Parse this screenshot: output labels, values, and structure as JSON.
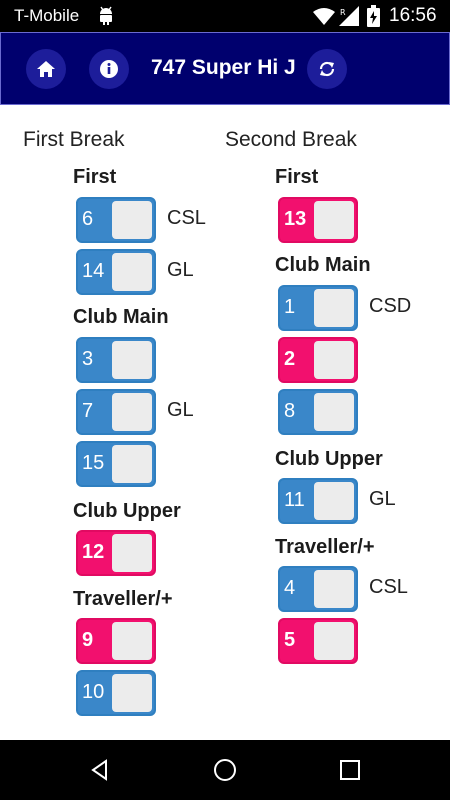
{
  "status": {
    "carrier": "T-Mobile",
    "time": "16:56"
  },
  "header": {
    "title": "747 Super Hi J",
    "home_icon": "home-icon",
    "info_icon": "info-icon",
    "refresh_icon": "refresh-icon",
    "background": "#00006e"
  },
  "colors": {
    "blue": "#3a87c9",
    "pink": "#f2106e"
  },
  "first_break": {
    "heading": "First Break",
    "groups": [
      {
        "label": "First",
        "seats": [
          {
            "num": "6",
            "tag": "CSL",
            "color": "blue"
          },
          {
            "num": "14",
            "tag": "GL",
            "color": "blue"
          }
        ]
      },
      {
        "label": "Club Main",
        "seats": [
          {
            "num": "3",
            "tag": "",
            "color": "blue"
          },
          {
            "num": "7",
            "tag": "GL",
            "color": "blue"
          },
          {
            "num": "15",
            "tag": "",
            "color": "blue"
          }
        ]
      },
      {
        "label": "Club Upper",
        "seats": [
          {
            "num": "12",
            "tag": "",
            "color": "pink"
          }
        ]
      },
      {
        "label": "Traveller/+",
        "seats": [
          {
            "num": "9",
            "tag": "",
            "color": "pink"
          },
          {
            "num": "10",
            "tag": "",
            "color": "blue"
          }
        ]
      }
    ]
  },
  "second_break": {
    "heading": "Second Break",
    "groups": [
      {
        "label": "First",
        "seats": [
          {
            "num": "13",
            "tag": "",
            "color": "pink"
          }
        ]
      },
      {
        "label": "Club Main",
        "seats": [
          {
            "num": "1",
            "tag": "CSD",
            "color": "blue"
          },
          {
            "num": "2",
            "tag": "",
            "color": "pink"
          },
          {
            "num": "8",
            "tag": "",
            "color": "blue"
          }
        ]
      },
      {
        "label": "Club Upper",
        "seats": [
          {
            "num": "11",
            "tag": "GL",
            "color": "blue"
          }
        ]
      },
      {
        "label": "Traveller/+",
        "seats": [
          {
            "num": "4",
            "tag": "CSL",
            "color": "blue"
          },
          {
            "num": "5",
            "tag": "",
            "color": "pink"
          }
        ]
      }
    ]
  },
  "nav": {
    "back_icon": "back-icon",
    "home_icon": "home-circle-icon",
    "recents_icon": "recents-icon"
  }
}
